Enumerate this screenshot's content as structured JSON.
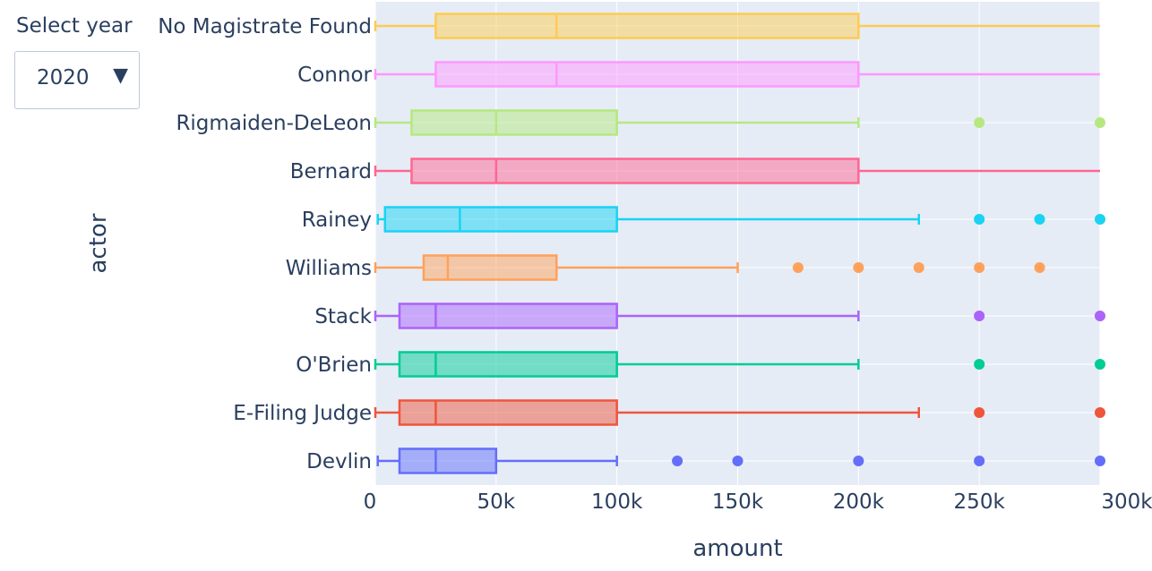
{
  "control": {
    "label": "Select year",
    "selected": "2020",
    "arrow_icon": "triangle-down-icon"
  },
  "chart_data": {
    "type": "box",
    "orientation": "horizontal",
    "xlabel": "amount",
    "ylabel": "actor",
    "xlim": [
      0,
      300000
    ],
    "x_ticks": [
      {
        "value": 0,
        "label": "0"
      },
      {
        "value": 50000,
        "label": "50k"
      },
      {
        "value": 100000,
        "label": "100k"
      },
      {
        "value": 150000,
        "label": "150k"
      },
      {
        "value": 200000,
        "label": "200k"
      },
      {
        "value": 250000,
        "label": "250k"
      },
      {
        "value": 300000,
        "label": "300k"
      }
    ],
    "background": "#e5ecf6",
    "grid": true,
    "series": [
      {
        "name": "No Magistrate Found",
        "color": "#FECB52",
        "min": 0,
        "q1": 25000,
        "median": 75000,
        "q3": 200000,
        "max": 300000,
        "outliers": []
      },
      {
        "name": "Connor",
        "color": "#FF97FF",
        "min": 0,
        "q1": 25000,
        "median": 75000,
        "q3": 200000,
        "max": 300000,
        "outliers": []
      },
      {
        "name": "Rigmaiden-DeLeon",
        "color": "#B6E880",
        "min": 0,
        "q1": 15000,
        "median": 50000,
        "q3": 100000,
        "max": 200000,
        "outliers": [
          250000,
          300000
        ]
      },
      {
        "name": "Bernard",
        "color": "#FF6692",
        "min": 0,
        "q1": 15000,
        "median": 50000,
        "q3": 200000,
        "max": 300000,
        "outliers": []
      },
      {
        "name": "Rainey",
        "color": "#19D3F3",
        "min": 1000,
        "q1": 4000,
        "median": 35000,
        "q3": 100000,
        "max": 225000,
        "outliers": [
          250000,
          275000,
          300000
        ]
      },
      {
        "name": "Williams",
        "color": "#FFA15A",
        "min": 0,
        "q1": 20000,
        "median": 30000,
        "q3": 75000,
        "max": 150000,
        "outliers": [
          175000,
          200000,
          225000,
          250000,
          275000
        ]
      },
      {
        "name": "Stack",
        "color": "#AB63FA",
        "min": 0,
        "q1": 10000,
        "median": 25000,
        "q3": 100000,
        "max": 200000,
        "outliers": [
          250000,
          300000
        ]
      },
      {
        "name": "O'Brien",
        "color": "#00CC96",
        "min": 0,
        "q1": 10000,
        "median": 25000,
        "q3": 100000,
        "max": 200000,
        "outliers": [
          250000,
          300000
        ]
      },
      {
        "name": "E-Filing Judge",
        "color": "#EF553B",
        "min": 0,
        "q1": 10000,
        "median": 25000,
        "q3": 100000,
        "max": 225000,
        "outliers": [
          250000,
          300000
        ]
      },
      {
        "name": "Devlin",
        "color": "#636EFA",
        "min": 1000,
        "q1": 10000,
        "median": 25000,
        "q3": 50000,
        "max": 100000,
        "outliers": [
          125000,
          150000,
          200000,
          250000,
          300000
        ]
      }
    ]
  }
}
